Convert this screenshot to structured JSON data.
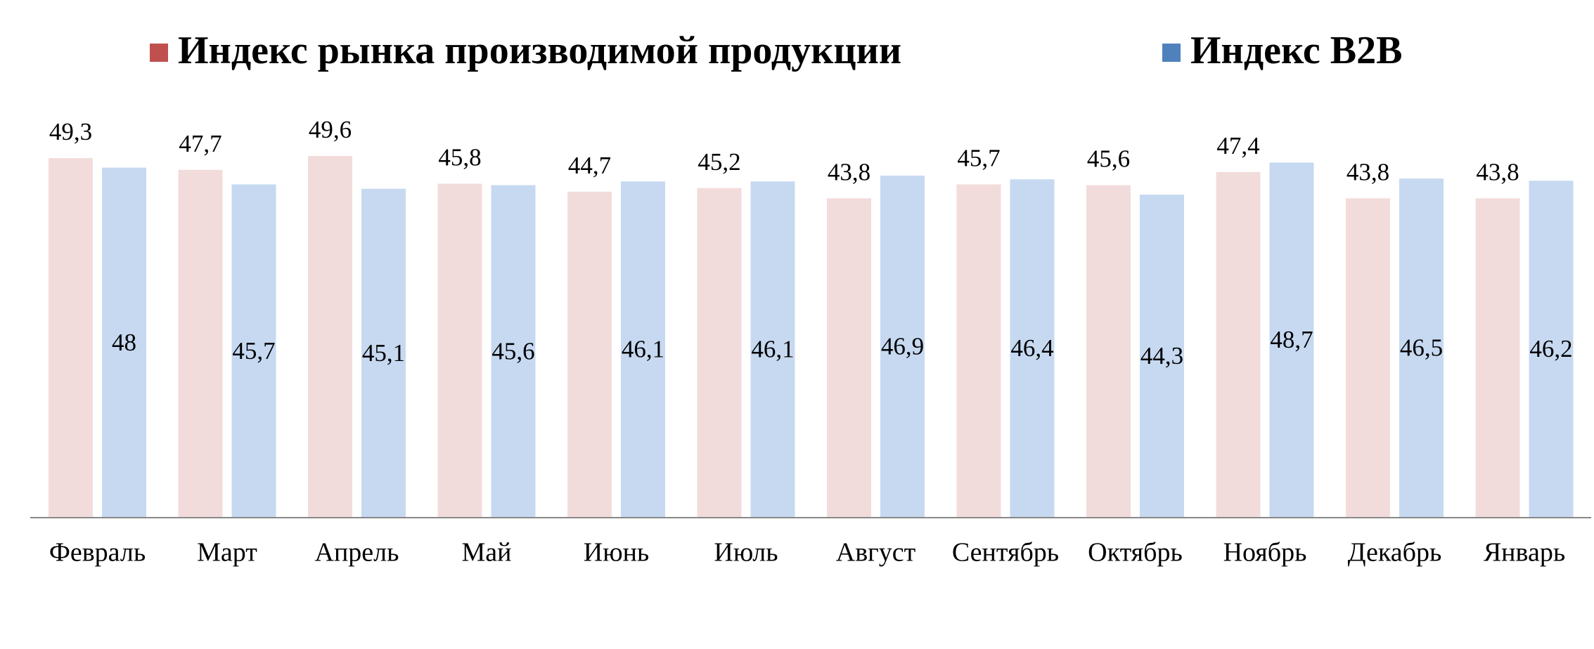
{
  "chart_data": {
    "type": "bar",
    "categories": [
      "Февраль",
      "Март",
      "Апрель",
      "Май",
      "Июнь",
      "Июль",
      "Август",
      "Сентябрь",
      "Октябрь",
      "Ноябрь",
      "Декабрь",
      "Январь"
    ],
    "series": [
      {
        "name": "Индекс рынка производимой продукции",
        "color": "#f2dcdb",
        "legend_color": "#c0504d",
        "values": [
          49.3,
          47.7,
          49.6,
          45.8,
          44.7,
          45.2,
          43.8,
          45.7,
          45.6,
          47.4,
          43.8,
          43.8
        ],
        "value_labels": [
          "49,3",
          "47,7",
          "49,6",
          "45,8",
          "44,7",
          "45,2",
          "43,8",
          "45,7",
          "45,6",
          "47,4",
          "43,8",
          "43,8"
        ]
      },
      {
        "name": "Индекс B2B",
        "color": "#c6d9f1",
        "legend_color": "#4f81bd",
        "values": [
          48,
          45.7,
          45.1,
          45.6,
          46.1,
          46.1,
          46.9,
          46.4,
          44.3,
          48.7,
          46.5,
          46.2
        ],
        "value_labels": [
          "48",
          "45,7",
          "45,1",
          "45,6",
          "46,1",
          "46,1",
          "46,9",
          "46,4",
          "44,3",
          "48,7",
          "46,5",
          "46,2"
        ]
      }
    ],
    "ylim": [
      0,
      55
    ]
  }
}
